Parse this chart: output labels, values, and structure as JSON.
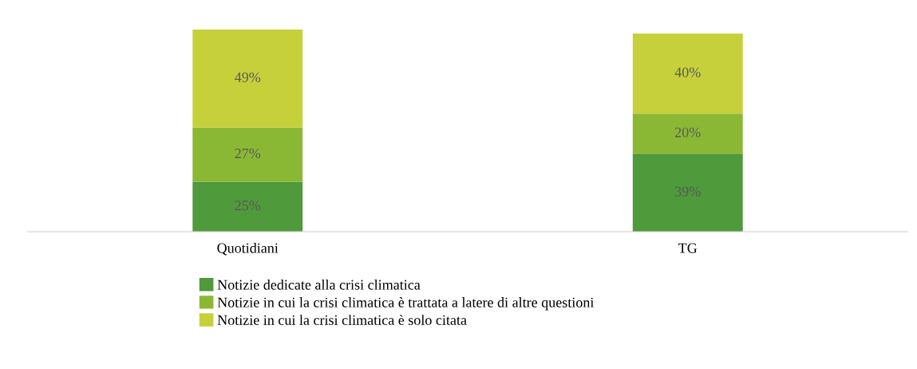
{
  "chart_data": {
    "type": "bar",
    "stacked": true,
    "categories": [
      "Quotidiani",
      "TG"
    ],
    "series": [
      {
        "name": "Notizie dedicate alla crisi climatica",
        "color": "#4f9a3b",
        "values": [
          25,
          39
        ],
        "value_labels": [
          "25%",
          "39%"
        ]
      },
      {
        "name": "Notizie in cui la crisi climatica è trattata a latere di altre questioni",
        "color": "#8bb834",
        "values": [
          27,
          20
        ],
        "value_labels": [
          "27%",
          "20%"
        ]
      },
      {
        "name": "Notizie in cui la crisi climatica è solo citata",
        "color": "#c6d03b",
        "values": [
          49,
          40
        ],
        "value_labels": [
          "49%",
          "40%"
        ]
      }
    ],
    "legend": "bottom"
  }
}
